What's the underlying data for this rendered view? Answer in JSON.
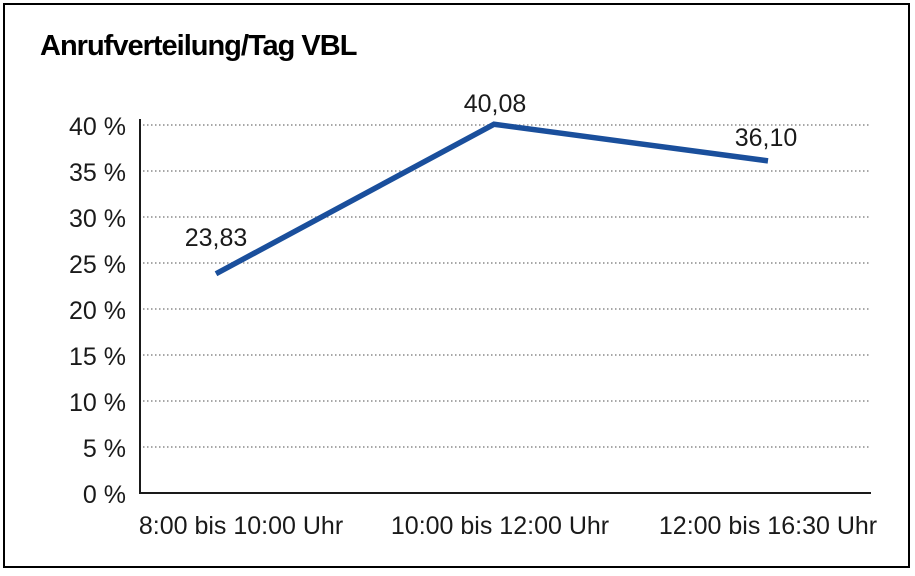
{
  "chart_data": {
    "type": "line",
    "title": "Anrufverteilung/Tag VBL",
    "categories": [
      "8:00 bis 10:00 Uhr",
      "10:00 bis 12:00 Uhr",
      "12:00 bis 16:30 Uhr"
    ],
    "values": [
      23.83,
      40.08,
      36.1
    ],
    "point_labels": [
      "23,83",
      "40,08",
      "36,10"
    ],
    "xlabel": "",
    "ylabel": "",
    "ylim": [
      0,
      40
    ],
    "yticks": [
      0,
      5,
      10,
      15,
      20,
      25,
      30,
      35,
      40
    ],
    "ytick_labels": [
      "0 %",
      "5 %",
      "10 %",
      "15 %",
      "20 %",
      "25 %",
      "30 %",
      "35 %",
      "40 %"
    ],
    "grid": "horizontal-dotted",
    "legend_position": "none",
    "colors": {
      "line": "#1A4F9C",
      "gridline": "#8a8a8a",
      "axis": "#1a1a1a",
      "frame_border": "#000000",
      "background": "#ffffff",
      "text": "#1a1a1a"
    }
  }
}
